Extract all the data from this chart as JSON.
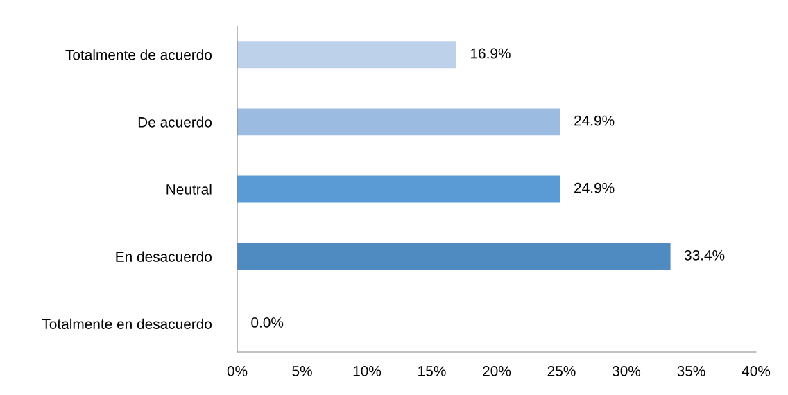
{
  "chart_data": {
    "type": "bar",
    "orientation": "horizontal",
    "categories": [
      "Totalmente de acuerdo",
      "De acuerdo",
      "Neutral",
      "En desacuerdo",
      "Totalmente en desacuerdo"
    ],
    "values": [
      16.9,
      24.9,
      24.9,
      33.4,
      0.0
    ],
    "colors": [
      "#bdd1ea",
      "#9bbbe0",
      "#5b9bd5",
      "#4f8bc0",
      "#4472c4"
    ],
    "value_labels": [
      "16.9%",
      "24.9%",
      "24.9%",
      "33.4%",
      "0.0%"
    ],
    "xlim": [
      0,
      40
    ],
    "xticks": [
      {
        "value": 0,
        "label": "0%"
      },
      {
        "value": 5,
        "label": "5%"
      },
      {
        "value": 10,
        "label": "10%"
      },
      {
        "value": 15,
        "label": "15%"
      },
      {
        "value": 20,
        "label": "20%"
      },
      {
        "value": 25,
        "label": "25%"
      },
      {
        "value": 30,
        "label": "30%"
      },
      {
        "value": 35,
        "label": "35%"
      },
      {
        "value": 40,
        "label": "40%"
      }
    ],
    "grid": false,
    "legend": false
  }
}
